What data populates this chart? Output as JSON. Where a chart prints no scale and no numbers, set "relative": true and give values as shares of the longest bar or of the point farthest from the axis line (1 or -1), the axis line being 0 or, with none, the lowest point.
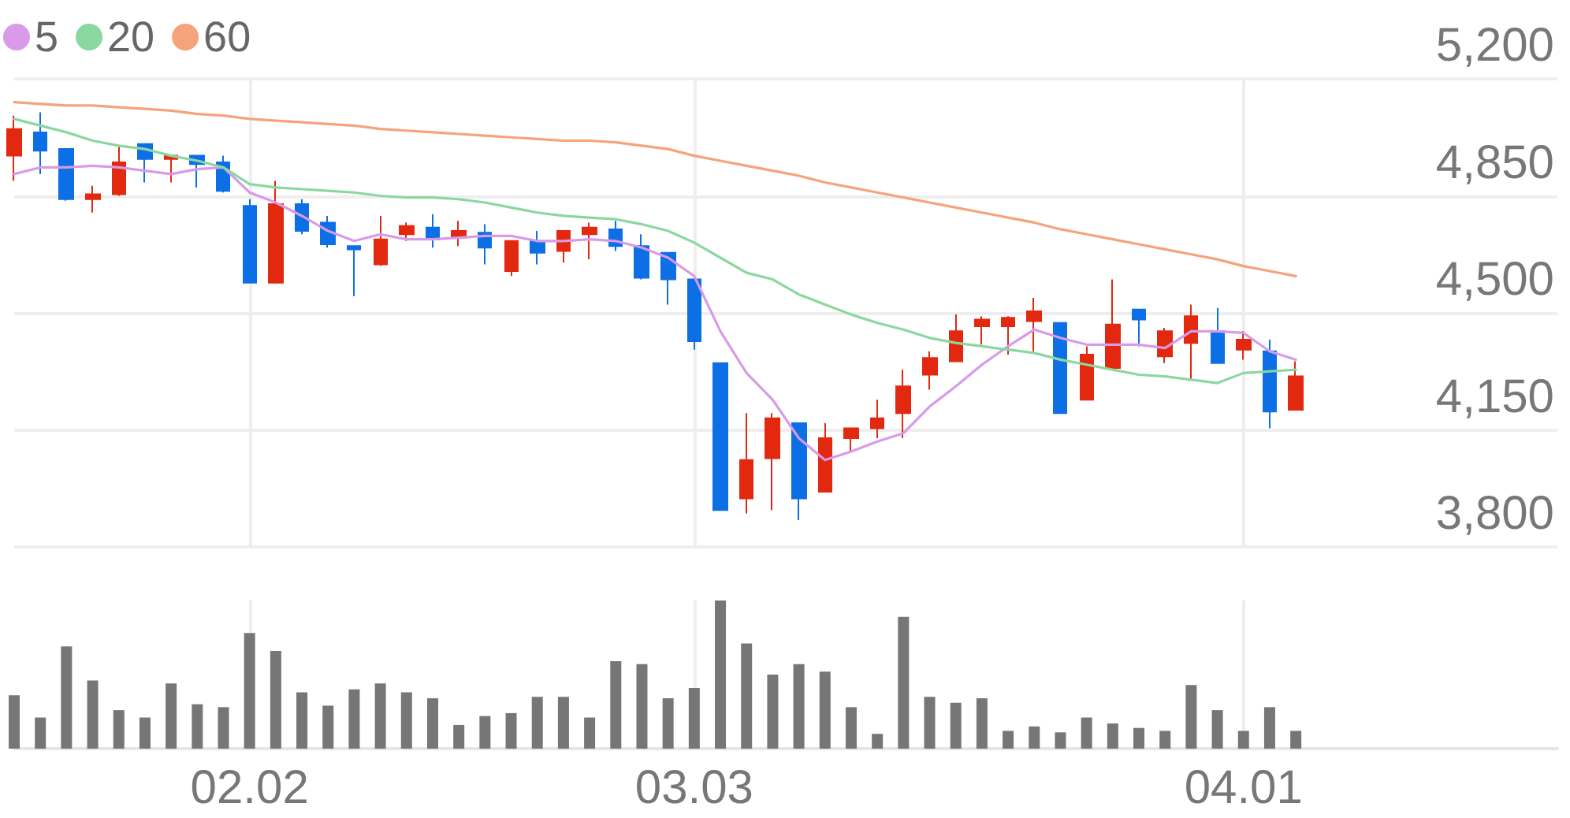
{
  "chart_data": [
    {
      "type": "candlestick",
      "categories": [
        null,
        null,
        null,
        null,
        null,
        null,
        null,
        null,
        null,
        "02.02",
        null,
        null,
        null,
        null,
        null,
        null,
        null,
        null,
        null,
        null,
        null,
        null,
        null,
        null,
        null,
        null,
        "03.03",
        null,
        null,
        null,
        null,
        null,
        null,
        null,
        null,
        null,
        null,
        null,
        null,
        null,
        null,
        null,
        null,
        null,
        null,
        null,
        null,
        "04.01",
        null,
        null
      ],
      "ohlc": [
        [
          4970,
          5090,
          4895,
          5050
        ],
        [
          5040,
          5100,
          4915,
          4985
        ],
        [
          4990,
          4990,
          4835,
          4840
        ],
        [
          4840,
          4880,
          4800,
          4855
        ],
        [
          4855,
          5000,
          4850,
          4950
        ],
        [
          5005,
          5005,
          4890,
          4960
        ],
        [
          4960,
          4970,
          4890,
          4970
        ],
        [
          4970,
          4970,
          4875,
          4945
        ],
        [
          4950,
          4970,
          4860,
          4865
        ],
        [
          4820,
          4840,
          4590,
          4590
        ],
        [
          4590,
          4895,
          4590,
          4825
        ],
        [
          4825,
          4840,
          4735,
          4745
        ],
        [
          4770,
          4790,
          4695,
          4705
        ],
        [
          4700,
          4700,
          4550,
          4690
        ],
        [
          4645,
          4790,
          4640,
          4720
        ],
        [
          4735,
          4770,
          4715,
          4760
        ],
        [
          4755,
          4795,
          4695,
          4720
        ],
        [
          4725,
          4775,
          4700,
          4745
        ],
        [
          4740,
          4765,
          4645,
          4695
        ],
        [
          4625,
          4715,
          4610,
          4715
        ],
        [
          4715,
          4745,
          4645,
          4680
        ],
        [
          4685,
          4745,
          4650,
          4745
        ],
        [
          4735,
          4770,
          4660,
          4755
        ],
        [
          4750,
          4775,
          4685,
          4700
        ],
        [
          4700,
          4735,
          4600,
          4605
        ],
        [
          4680,
          4680,
          4525,
          4600
        ],
        [
          4600,
          4610,
          4390,
          4415
        ],
        [
          4350,
          4350,
          3910,
          3910
        ],
        [
          3945,
          4200,
          3900,
          4060
        ],
        [
          4065,
          4200,
          3910,
          4185
        ],
        [
          4170,
          4170,
          3880,
          3945
        ],
        [
          3965,
          4170,
          3965,
          4125
        ],
        [
          4125,
          4155,
          4085,
          4155
        ],
        [
          4155,
          4240,
          4125,
          4185
        ],
        [
          4200,
          4330,
          4125,
          4280
        ],
        [
          4315,
          4385,
          4270,
          4365
        ],
        [
          4355,
          4495,
          4355,
          4445
        ],
        [
          4460,
          4490,
          4405,
          4480
        ],
        [
          4460,
          4490,
          4375,
          4485
        ],
        [
          4475,
          4545,
          4385,
          4505
        ],
        [
          4470,
          4470,
          4200,
          4200
        ],
        [
          4240,
          4400,
          4240,
          4375
        ],
        [
          4335,
          4600,
          4330,
          4465
        ],
        [
          4510,
          4510,
          4400,
          4480
        ],
        [
          4370,
          4455,
          4350,
          4445
        ],
        [
          4410,
          4525,
          4300,
          4490
        ],
        [
          4445,
          4515,
          4350,
          4350
        ],
        [
          4390,
          4445,
          4360,
          4420
        ],
        [
          4385,
          4420,
          4155,
          4205
        ],
        [
          4210,
          4355,
          4210,
          4310
        ]
      ],
      "colors": [
        "#e2280f",
        "#0c6fe6",
        "#0c6fe6",
        "#e2280f",
        "#e2280f",
        "#0c6fe6",
        "#e2280f",
        "#0c6fe6",
        "#0c6fe6",
        "#0c6fe6",
        "#e2280f",
        "#0c6fe6",
        "#0c6fe6",
        "#0c6fe6",
        "#e2280f",
        "#e2280f",
        "#0c6fe6",
        "#e2280f",
        "#0c6fe6",
        "#e2280f",
        "#0c6fe6",
        "#e2280f",
        "#e2280f",
        "#0c6fe6",
        "#0c6fe6",
        "#0c6fe6",
        "#0c6fe6",
        "#0c6fe6",
        "#e2280f",
        "#e2280f",
        "#0c6fe6",
        "#e2280f",
        "#e2280f",
        "#e2280f",
        "#e2280f",
        "#e2280f",
        "#e2280f",
        "#e2280f",
        "#e2280f",
        "#e2280f",
        "#0c6fe6",
        "#e2280f",
        "#e2280f",
        "#0c6fe6",
        "#e2280f",
        "#e2280f",
        "#0c6fe6",
        "#e2280f",
        "#0c6fe6",
        "#e2280f"
      ],
      "series": [
        {
          "name": "5",
          "type": "line",
          "color": "#d89ae9",
          "values": [
            4915,
            4935,
            4935,
            4940,
            4935,
            4925,
            4915,
            4930,
            4935,
            4860,
            4830,
            4790,
            4745,
            4715,
            4735,
            4720,
            4720,
            4725,
            4730,
            4730,
            4715,
            4715,
            4720,
            4715,
            4695,
            4665,
            4610,
            4445,
            4320,
            4240,
            4125,
            4060,
            4085,
            4115,
            4140,
            4220,
            4280,
            4345,
            4400,
            4450,
            4425,
            4405,
            4405,
            4405,
            4395,
            4445,
            4445,
            4440,
            4385,
            4360
          ]
        },
        {
          "name": "20",
          "type": "line",
          "color": "#8ad8a0",
          "values": [
            5080,
            5060,
            5040,
            5015,
            5000,
            4990,
            4970,
            4955,
            4935,
            4885,
            4875,
            4870,
            4865,
            4860,
            4850,
            4845,
            4845,
            4840,
            4830,
            4815,
            4800,
            4790,
            4785,
            4780,
            4765,
            4745,
            4710,
            4665,
            4620,
            4600,
            4555,
            4525,
            4495,
            4470,
            4450,
            4425,
            4410,
            4400,
            4390,
            4380,
            4360,
            4345,
            4330,
            4315,
            4310,
            4300,
            4290,
            4320,
            4325,
            4330
          ]
        },
        {
          "name": "60",
          "type": "line",
          "color": "#f5a37b",
          "values": [
            5130,
            5125,
            5120,
            5120,
            5115,
            5110,
            5105,
            5095,
            5090,
            5080,
            5075,
            5070,
            5065,
            5060,
            5050,
            5045,
            5040,
            5035,
            5030,
            5025,
            5020,
            5015,
            5015,
            5010,
            5000,
            4990,
            4970,
            4955,
            4940,
            4925,
            4910,
            4890,
            4875,
            4860,
            4845,
            4830,
            4815,
            4800,
            4785,
            4770,
            4750,
            4735,
            4720,
            4705,
            4690,
            4675,
            4660,
            4640,
            4625,
            4610
          ]
        }
      ],
      "ylim": [
        3800,
        5200
      ],
      "yticks": [
        {
          "value": 3800,
          "label": "3,800"
        },
        {
          "value": 4150,
          "label": "4,150"
        },
        {
          "value": 4500,
          "label": "4,500"
        },
        {
          "value": 4850,
          "label": "4,850"
        },
        {
          "value": 5200,
          "label": "5,200"
        }
      ],
      "grid": true,
      "legend": "top left",
      "marker": "none",
      "tick_labels": "y"
    },
    {
      "type": "bar",
      "categories": [
        null,
        null,
        null,
        null,
        null,
        null,
        null,
        null,
        null,
        "02.02",
        null,
        null,
        null,
        null,
        null,
        null,
        null,
        null,
        null,
        null,
        null,
        null,
        null,
        null,
        null,
        null,
        "03.03",
        null,
        null,
        null,
        null,
        null,
        null,
        null,
        null,
        null,
        null,
        null,
        null,
        null,
        null,
        null,
        null,
        null,
        null,
        null,
        null,
        "04.01",
        null,
        null
      ],
      "values": [
        0.36,
        0.21,
        0.69,
        0.46,
        0.26,
        0.21,
        0.44,
        0.3,
        0.28,
        0.78,
        0.66,
        0.38,
        0.29,
        0.4,
        0.44,
        0.38,
        0.34,
        0.16,
        0.22,
        0.24,
        0.35,
        0.35,
        0.21,
        0.59,
        0.57,
        0.34,
        0.41,
        1,
        0.71,
        0.5,
        0.57,
        0.52,
        0.28,
        0.1,
        0.89,
        0.35,
        0.31,
        0.34,
        0.12,
        0.15,
        0.11,
        0.21,
        0.17,
        0.14,
        0.12,
        0.43,
        0.26,
        0.12,
        0.28,
        0.12
      ],
      "color": "#767676",
      "relative": true,
      "grid": "x"
    }
  ]
}
